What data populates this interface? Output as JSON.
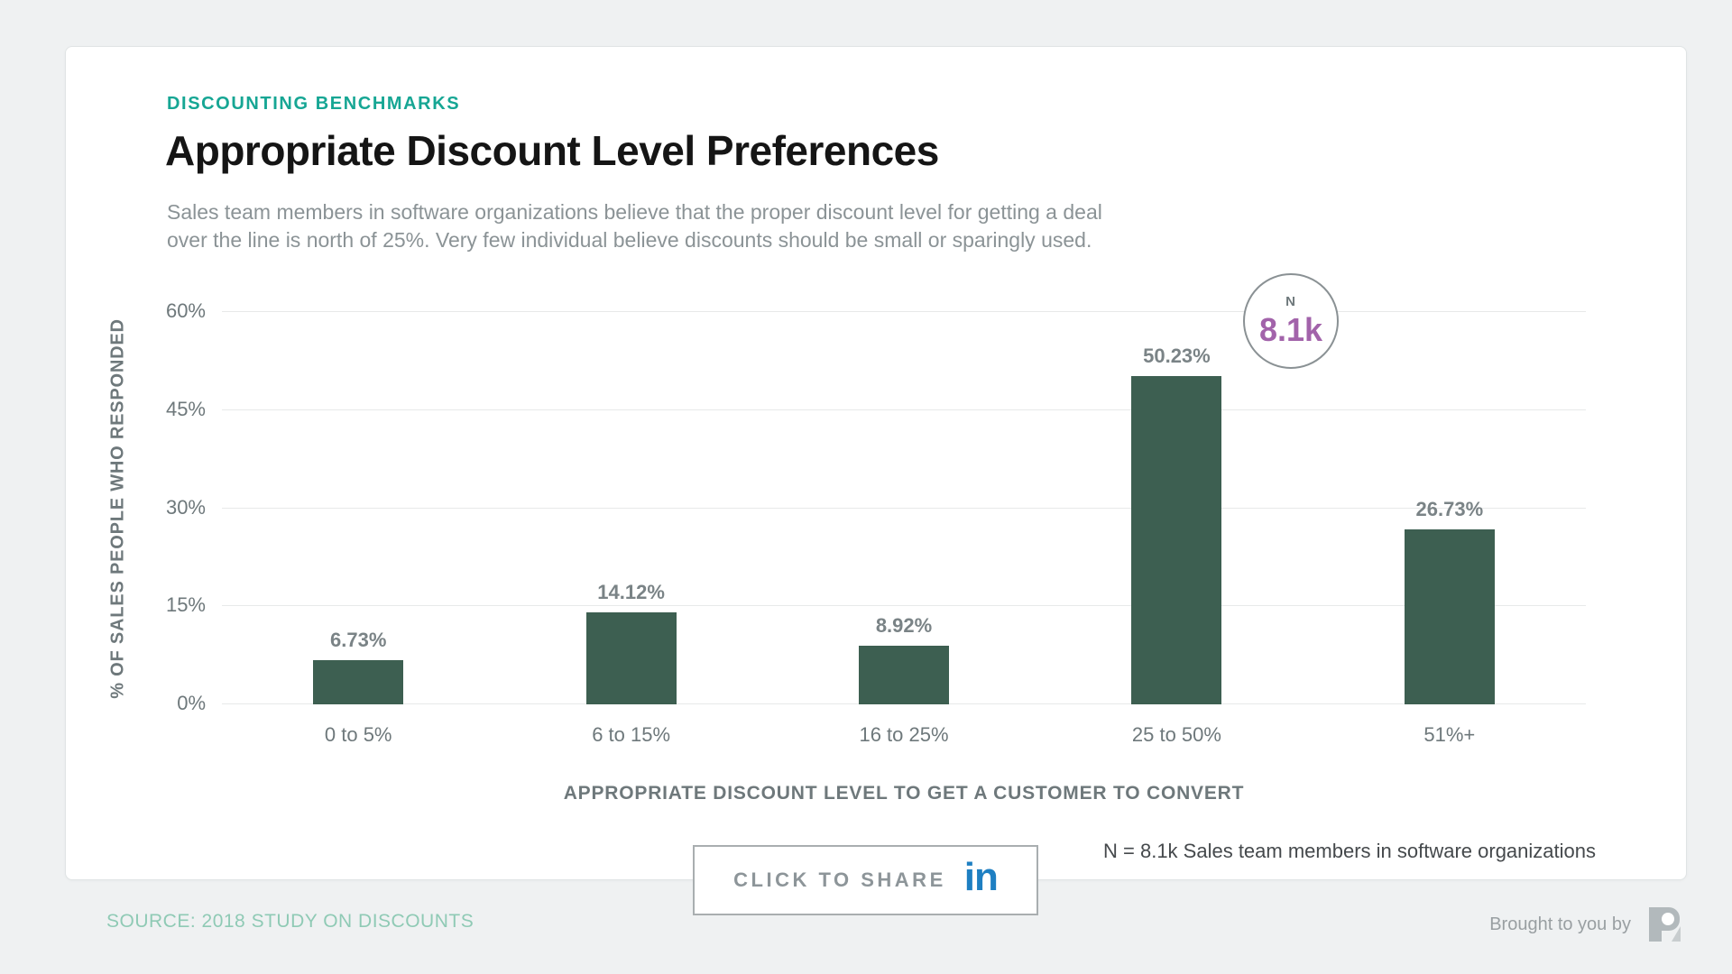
{
  "header": {
    "eyebrow": "DISCOUNTING BENCHMARKS",
    "title": "Appropriate Discount Level Preferences",
    "subtitle_line1": "Sales team members in software organizations believe that the proper discount level for getting a deal",
    "subtitle_line2": "over the line is north of 25%. Very few individual believe discounts should be small or sparingly used."
  },
  "chart_data": {
    "type": "bar",
    "categories": [
      "0 to 5%",
      "6 to 15%",
      "16 to 25%",
      "25 to 50%",
      "51%+"
    ],
    "values": [
      6.73,
      14.12,
      8.92,
      50.23,
      26.73
    ],
    "value_labels": [
      "6.73%",
      "14.12%",
      "8.92%",
      "50.23%",
      "26.73%"
    ],
    "title": "Appropriate Discount Level Preferences",
    "xlabel": "APPROPRIATE DISCOUNT LEVEL TO GET A CUSTOMER TO CONVERT",
    "ylabel": "% OF SALES PEOPLE WHO RESPONDED",
    "ylim": [
      0,
      60
    ],
    "yticks": [
      0,
      15,
      30,
      45,
      60
    ],
    "ytick_labels": [
      "0%",
      "15%",
      "30%",
      "45%",
      "60%"
    ],
    "grid": true,
    "legend": false,
    "bar_color": "#3d5f51"
  },
  "badge": {
    "label": "N",
    "value": "8.1k",
    "value_color": "#a263aa"
  },
  "share_button": {
    "label": "CLICK TO SHARE",
    "icon": "linkedin-icon",
    "icon_text": "in",
    "icon_color": "#1e7fc2"
  },
  "footnote": "N = 8.1k Sales team members in software organizations",
  "footer": {
    "source": "SOURCE: 2018 STUDY ON DISCOUNTS",
    "brought_by": "Brought to you by",
    "logo": "price-intelligently-logo"
  },
  "colors": {
    "accent_teal": "#16a694",
    "bar_green": "#3d5f51",
    "badge_purple": "#a263aa",
    "linkedin_blue": "#1e7fc2",
    "source_green": "#8fcab5",
    "page_background": "#eff1f2"
  }
}
